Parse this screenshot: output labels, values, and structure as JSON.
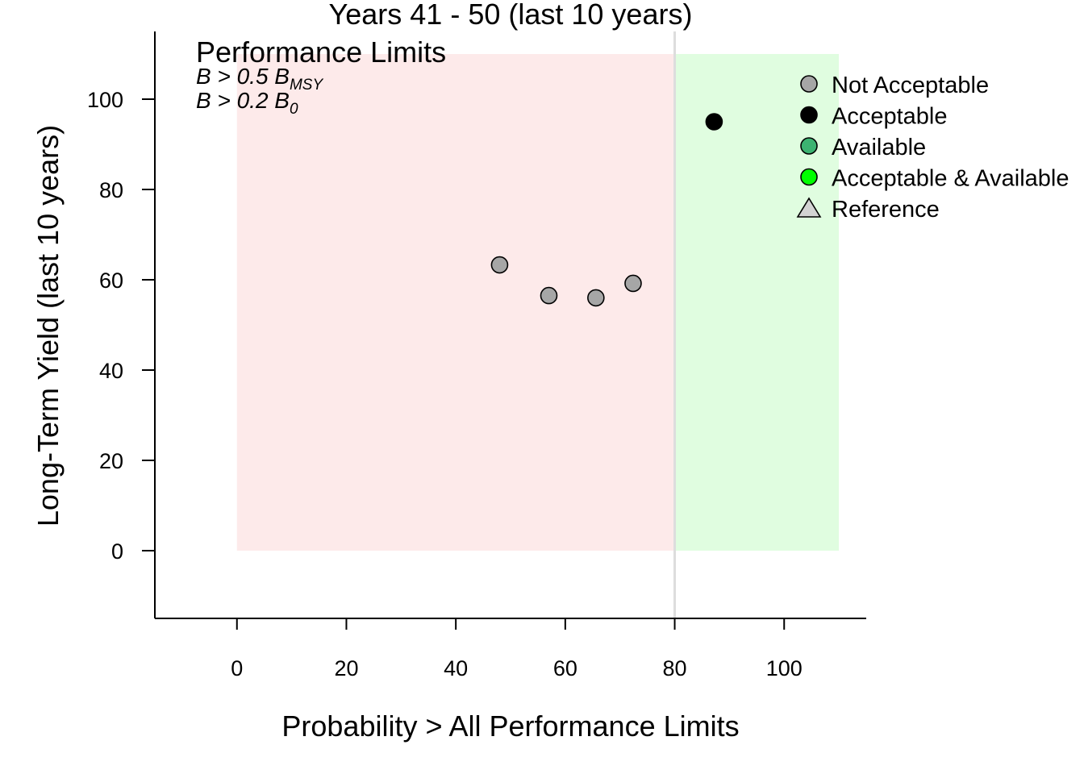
{
  "chart_data": {
    "type": "scatter",
    "title": "Years 41 - 50 (last 10 years)",
    "xlabel": "Probability > All Performance Limits",
    "ylabel": "Long-Term Yield (last 10 years)",
    "xlim": [
      -15,
      115
    ],
    "ylim": [
      -15,
      115
    ],
    "x_ticks": [
      0,
      20,
      40,
      60,
      80,
      100
    ],
    "y_ticks": [
      0,
      20,
      40,
      60,
      80,
      100
    ],
    "grid": false,
    "legend_position": "top-right",
    "threshold_x": 80,
    "regions": [
      {
        "name": "not-acceptable-region",
        "x": [
          0,
          80
        ],
        "y": [
          0,
          110
        ],
        "color": "#fdeaea"
      },
      {
        "name": "acceptable-region",
        "x": [
          80,
          110
        ],
        "y": [
          0,
          110
        ],
        "color": "#e0fde0"
      }
    ],
    "threshold_line_color": "#dddddd",
    "performance_limits": {
      "title": "Performance Limits",
      "lines": [
        {
          "main": "B > 0.5 B",
          "sub": "MSY"
        },
        {
          "main": "B > 0.2 B",
          "sub": "0"
        }
      ]
    },
    "series": [
      {
        "name": "Not Acceptable",
        "color": "#a6a6a6",
        "points": [
          {
            "x": 48,
            "y": 63.3
          },
          {
            "x": 57,
            "y": 56.5
          },
          {
            "x": 65.6,
            "y": 56
          },
          {
            "x": 72.4,
            "y": 59.2
          }
        ]
      },
      {
        "name": "Acceptable",
        "color": "#000000",
        "points": [
          {
            "x": 87.2,
            "y": 95
          }
        ]
      },
      {
        "name": "Available",
        "color": "#3cb371",
        "points": []
      },
      {
        "name": "Acceptable & Available",
        "color": "#00ff00",
        "points": []
      }
    ],
    "legend": [
      {
        "label": "Not Acceptable",
        "shape": "circle",
        "color": "#a6a6a6"
      },
      {
        "label": "Acceptable",
        "shape": "circle",
        "color": "#000000"
      },
      {
        "label": "Available",
        "shape": "circle",
        "color": "#3cb371"
      },
      {
        "label": "Acceptable & Available",
        "shape": "circle",
        "color": "#00ff00"
      },
      {
        "label": "Reference",
        "shape": "triangle",
        "color": "#d3d3d3"
      }
    ]
  }
}
